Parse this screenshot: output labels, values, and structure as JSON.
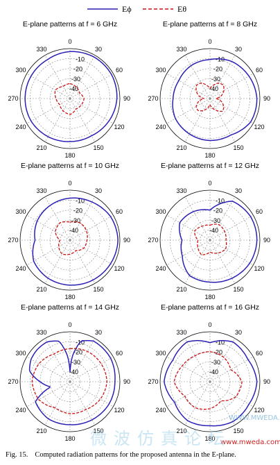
{
  "legend": {
    "items": [
      {
        "label": "Eϕ",
        "color": "#2a1fb4",
        "dash": "solid"
      },
      {
        "label": "Eθ",
        "color": "#cc1111",
        "dash": "dashed"
      }
    ]
  },
  "chart_data": [
    {
      "type": "polar-line",
      "title": "E-plane patterns at f = 6 GHz",
      "angle_ticks": [
        "0",
        "30",
        "60",
        "90",
        "120",
        "150",
        "180",
        "210",
        "240",
        "270",
        "300",
        "330"
      ],
      "radial_ticks": [
        "-10",
        "-20",
        "-30",
        "-40"
      ],
      "rlim": [
        -50,
        0
      ],
      "grid": true,
      "series": [
        {
          "name": "Eϕ",
          "angles": [
            0,
            30,
            60,
            90,
            120,
            150,
            180,
            210,
            240,
            270,
            300,
            330,
            360
          ],
          "values": [
            -3,
            -2,
            -2,
            -3,
            -5,
            -7,
            -7,
            -6,
            -5,
            -5,
            -5,
            -5,
            -3
          ]
        },
        {
          "name": "Eθ",
          "angles": [
            0,
            30,
            60,
            90,
            120,
            150,
            180,
            210,
            240,
            270,
            300,
            330,
            360
          ],
          "values": [
            -35,
            -37,
            -39,
            -36,
            -37,
            -38,
            -34,
            -36,
            -38,
            -36,
            -33,
            -36,
            -35
          ]
        }
      ]
    },
    {
      "type": "polar-line",
      "title": "E-plane patterns at f = 8 GHz",
      "angle_ticks": [
        "0",
        "30",
        "60",
        "90",
        "120",
        "150",
        "180",
        "210",
        "240",
        "270",
        "300",
        "330"
      ],
      "radial_ticks": [
        "-10",
        "-20",
        "-30",
        "-40"
      ],
      "rlim": [
        -50,
        0
      ],
      "grid": true,
      "series": [
        {
          "name": "Eϕ",
          "angles": [
            0,
            30,
            60,
            90,
            120,
            150,
            180,
            210,
            240,
            270,
            300,
            330,
            360
          ],
          "values": [
            -11,
            -7,
            -5,
            -3,
            -3,
            -8,
            -8,
            -9,
            -10,
            -13,
            -14,
            -12,
            -11
          ]
        },
        {
          "name": "Eθ",
          "angles": [
            0,
            15,
            30,
            45,
            60,
            75,
            90,
            105,
            120,
            135,
            150,
            165,
            180,
            195,
            210,
            225,
            240,
            255,
            270,
            285,
            300,
            315,
            330,
            345,
            360
          ],
          "values": [
            -40,
            -36,
            -32,
            -31,
            -34,
            -38,
            -44,
            -38,
            -34,
            -32,
            -36,
            -40,
            -44,
            -40,
            -36,
            -33,
            -34,
            -38,
            -44,
            -38,
            -34,
            -31,
            -32,
            -36,
            -40
          ]
        }
      ]
    },
    {
      "type": "polar-line",
      "title": "E-plane patterns at f = 10 GHz",
      "angle_ticks": [
        "0",
        "30",
        "60",
        "90",
        "120",
        "150",
        "180",
        "210",
        "240",
        "270",
        "300",
        "330"
      ],
      "radial_ticks": [
        "-10",
        "-20",
        "-30",
        "-40"
      ],
      "rlim": [
        -50,
        0
      ],
      "grid": true,
      "series": [
        {
          "name": "Eϕ",
          "angles": [
            0,
            30,
            60,
            90,
            120,
            150,
            180,
            210,
            240,
            270,
            300,
            330,
            360
          ],
          "values": [
            -8,
            -6,
            -3,
            -2,
            -3,
            -4,
            -5,
            -6,
            -8,
            -15,
            -12,
            -10,
            -8
          ]
        },
        {
          "name": "Eθ",
          "angles": [
            0,
            30,
            60,
            90,
            120,
            150,
            180,
            210,
            240,
            270,
            300,
            330,
            360
          ],
          "values": [
            -32,
            -30,
            -31,
            -33,
            -34,
            -38,
            -36,
            -34,
            -37,
            -40,
            -33,
            -30,
            -32
          ]
        }
      ]
    },
    {
      "type": "polar-line",
      "title": "E-plane patterns at f = 12 GHz",
      "angle_ticks": [
        "0",
        "30",
        "60",
        "90",
        "120",
        "150",
        "180",
        "210",
        "240",
        "270",
        "300",
        "330"
      ],
      "radial_ticks": [
        "-10",
        "-20",
        "-30",
        "-40"
      ],
      "rlim": [
        -50,
        0
      ],
      "grid": true,
      "series": [
        {
          "name": "Eϕ",
          "angles": [
            0,
            30,
            60,
            90,
            120,
            150,
            180,
            210,
            240,
            270,
            300,
            330,
            360
          ],
          "values": [
            -20,
            -5,
            -3,
            -3,
            -4,
            -6,
            -8,
            -9,
            -18,
            -22,
            -15,
            -17,
            -20
          ]
        },
        {
          "name": "Eθ",
          "angles": [
            0,
            30,
            60,
            90,
            120,
            150,
            180,
            210,
            240,
            270,
            300,
            330,
            360
          ],
          "values": [
            -35,
            -32,
            -33,
            -34,
            -32,
            -35,
            -38,
            -33,
            -36,
            -38,
            -32,
            -34,
            -35
          ]
        }
      ]
    },
    {
      "type": "polar-line",
      "title": "E-plane patterns at f = 14 GHz",
      "angle_ticks": [
        "0",
        "30",
        "60",
        "90",
        "120",
        "150",
        "180",
        "210",
        "240",
        "270",
        "300",
        "330"
      ],
      "radial_ticks": [
        "-10",
        "-20",
        "-30",
        "-40"
      ],
      "rlim": [
        -50,
        0
      ],
      "grid": true,
      "series": [
        {
          "name": "Eϕ",
          "angles": [
            0,
            5,
            15,
            30,
            45,
            60,
            90,
            120,
            150,
            180,
            210,
            240,
            255,
            270,
            285,
            300,
            315,
            330,
            345,
            355,
            360
          ],
          "values": [
            -40,
            -25,
            -8,
            -3,
            -3,
            -3,
            -5,
            -5,
            -6,
            -7,
            -7,
            -10,
            -30,
            -20,
            -8,
            -5,
            -4,
            -4,
            -8,
            -25,
            -40
          ]
        },
        {
          "name": "Eθ",
          "angles": [
            0,
            30,
            60,
            90,
            120,
            150,
            180,
            210,
            240,
            270,
            300,
            330,
            360
          ],
          "values": [
            -17,
            -15,
            -14,
            -13,
            -15,
            -18,
            -18,
            -20,
            -14,
            -12,
            -14,
            -18,
            -17
          ]
        }
      ]
    },
    {
      "type": "polar-line",
      "title": "E-plane patterns at f = 16 GHz",
      "angle_ticks": [
        "0",
        "30",
        "60",
        "90",
        "120",
        "150",
        "180",
        "210",
        "240",
        "270",
        "300",
        "330"
      ],
      "radial_ticks": [
        "-10",
        "-20",
        "-30",
        "-40"
      ],
      "rlim": [
        -50,
        0
      ],
      "grid": true,
      "series": [
        {
          "name": "Eϕ",
          "angles": [
            0,
            30,
            60,
            90,
            120,
            150,
            180,
            210,
            240,
            270,
            300,
            330,
            360
          ],
          "values": [
            -11,
            -4,
            -6,
            -3,
            -5,
            -4,
            -6,
            -5,
            -9,
            -4,
            -7,
            -4,
            -11
          ]
        },
        {
          "name": "Eθ",
          "angles": [
            0,
            30,
            60,
            90,
            120,
            150,
            180,
            210,
            240,
            270,
            300,
            330,
            360
          ],
          "values": [
            -20,
            -22,
            -26,
            -18,
            -20,
            -28,
            -23,
            -20,
            -21,
            -14,
            -18,
            -20,
            -20
          ]
        }
      ]
    }
  ],
  "caption": {
    "fig": "Fig. 15.",
    "text": "Computed radiation patterns for the proposed antenna in the E-plane."
  },
  "watermark": {
    "site": "WWW.MWEDA.CN",
    "url": "www.mweda.com",
    "cn": "微波仿真论坛"
  }
}
